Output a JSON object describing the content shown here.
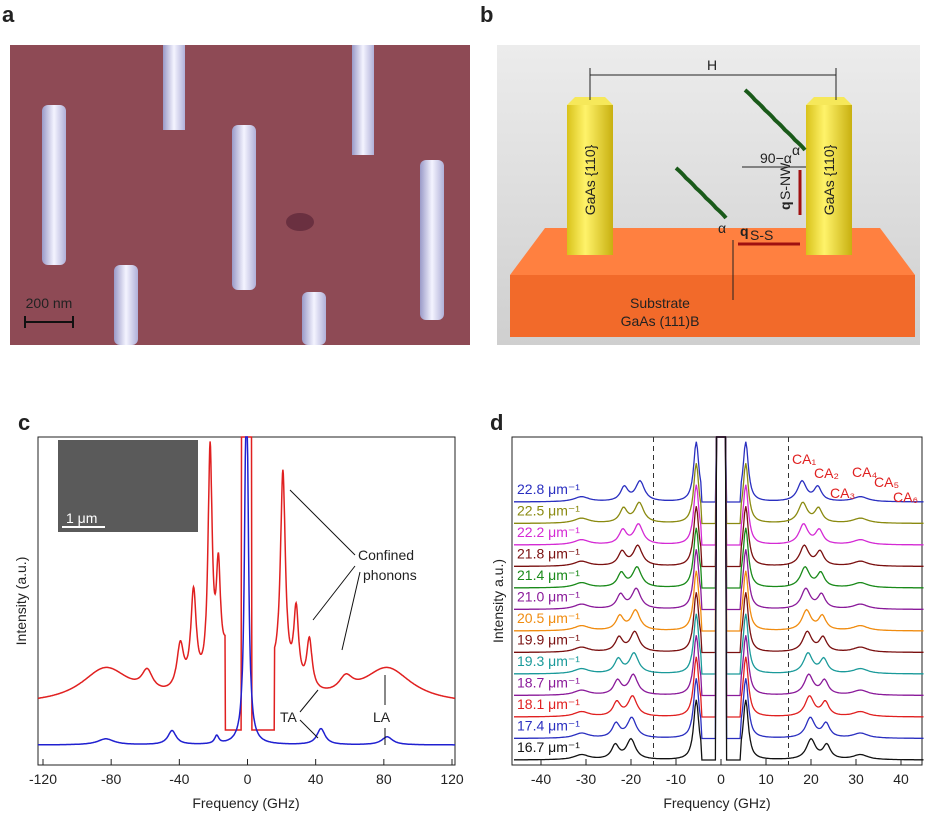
{
  "panels": {
    "a": {
      "label": "a",
      "scale_bar": "200 nm"
    },
    "b": {
      "label": "b",
      "distance": "H",
      "facet_left": "GaAs {110}",
      "facet_right": "GaAs {110}",
      "angle_complement": "90−α",
      "angle": "α",
      "wave_vector_nw": "q",
      "wave_vector_nw_sub": "S-NW",
      "wave_vector_ss": "q",
      "wave_vector_ss_sub": "S-S",
      "substrate": "Substrate",
      "substrate_material": "GaAs (111)B"
    },
    "c": {
      "label": "c",
      "y_label": "Intensity (a.u.)",
      "x_label": "Frequency (GHz)",
      "xticks": [
        "-120",
        "-80",
        "-40",
        "0",
        "40",
        "80",
        "120"
      ],
      "inset_scale": "1 μm",
      "annotation_confined": [
        "Confined",
        "phonons"
      ],
      "annotation_ta": "TA",
      "annotation_la": "LA"
    },
    "d": {
      "label": "d",
      "y_label": "Intensity a.u.)",
      "x_label": "Frequency (GHz)",
      "xticks": [
        "-40",
        "-30",
        "-20",
        "-10",
        "0",
        "10",
        "20",
        "30",
        "40"
      ],
      "curves": [
        {
          "name": "22.8 μm⁻¹",
          "color": "#2a2fc0"
        },
        {
          "name": "22.5 μm⁻¹",
          "color": "#8a8a10"
        },
        {
          "name": "22.2 μm⁻¹",
          "color": "#d42ad4"
        },
        {
          "name": "21.8 μm⁻¹",
          "color": "#7a1010"
        },
        {
          "name": "21.4 μm⁻¹",
          "color": "#1a8a1a"
        },
        {
          "name": "21.0 μm⁻¹",
          "color": "#8a1a9a"
        },
        {
          "name": "20.5 μm⁻¹",
          "color": "#f08c10"
        },
        {
          "name": "19.9 μm⁻¹",
          "color": "#7a1010"
        },
        {
          "name": "19.3 μm⁻¹",
          "color": "#1a9a9a"
        },
        {
          "name": "18.7 μm⁻¹",
          "color": "#8a1a9a"
        },
        {
          "name": "18.1 μm⁻¹",
          "color": "#e02020"
        },
        {
          "name": "17.4 μm⁻¹",
          "color": "#2a2fc0"
        },
        {
          "name": "16.7 μm⁻¹",
          "color": "#111111"
        }
      ],
      "modes": [
        "CA₁",
        "CA₂",
        "CA₃",
        "CA₄",
        "CA₅",
        "CA₆"
      ]
    }
  }
}
